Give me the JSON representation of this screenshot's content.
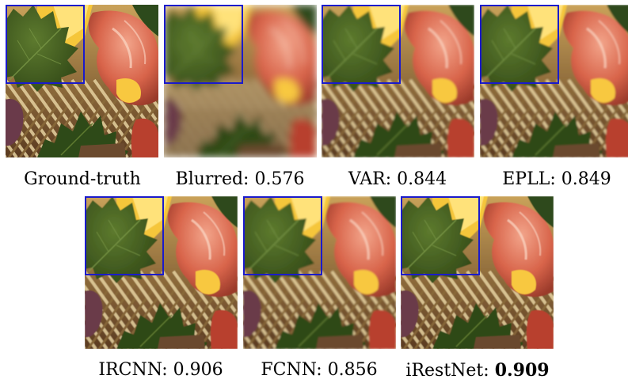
{
  "figure": {
    "panels": [
      {
        "name": "ground-truth",
        "label": "Ground-truth",
        "score": "",
        "bold": false,
        "blur": 0,
        "inset": true
      },
      {
        "name": "blurred",
        "label": "Blurred:",
        "score": "0.576",
        "bold": false,
        "blur": 5,
        "inset": true
      },
      {
        "name": "var",
        "label": "VAR:",
        "score": "0.844",
        "bold": false,
        "blur": 1.3,
        "inset": true
      },
      {
        "name": "epll",
        "label": "EPLL:",
        "score": "0.849",
        "bold": false,
        "blur": 1.1,
        "inset": true
      },
      {
        "name": "ircnn",
        "label": "IRCNN:",
        "score": "0.906",
        "bold": false,
        "blur": 0.6,
        "inset": true
      },
      {
        "name": "fcnn",
        "label": "FCNN:",
        "score": "0.856",
        "bold": false,
        "blur": 1.0,
        "inset": true
      },
      {
        "name": "irestnet",
        "label": "iRestNet:",
        "score": "0.909",
        "bold": true,
        "blur": 0.5,
        "inset": true
      }
    ],
    "inset_border_color": "#1a1acc"
  }
}
